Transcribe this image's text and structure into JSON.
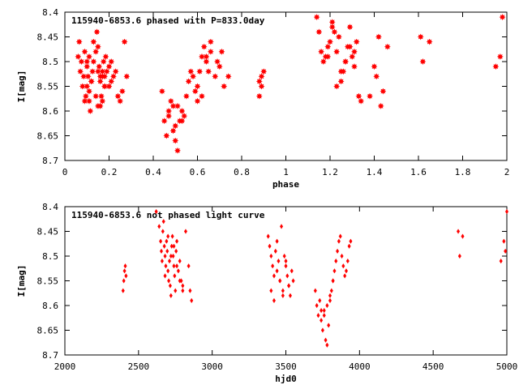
{
  "chart_data": [
    {
      "type": "scatter",
      "title": "115940-6853.6 phased with P=833.0day",
      "xlabel": "phase",
      "ylabel": "I[mag]",
      "xlim": [
        0,
        2
      ],
      "ylim": [
        8.4,
        8.7
      ],
      "y_inverted": true,
      "x_ticks": [
        0,
        0.2,
        0.4,
        0.6,
        0.8,
        1,
        1.2,
        1.4,
        1.6,
        1.8,
        2
      ],
      "x_tick_labels": [
        "0",
        "0.2",
        "0.4",
        "0.6",
        "0.8",
        "1",
        "1.2",
        "1.4",
        "1.6",
        "1.8",
        "2"
      ],
      "y_ticks": [
        8.4,
        8.45,
        8.5,
        8.55,
        8.6,
        8.65,
        8.7
      ],
      "y_tick_labels": [
        "8.4",
        "8.45",
        "8.5",
        "8.55",
        "8.6",
        "8.65",
        "8.7"
      ],
      "marker": "star",
      "marker_color": "#ff0000",
      "x": [
        0.06,
        0.065,
        0.07,
        0.075,
        0.08,
        0.085,
        0.09,
        0.095,
        0.1,
        0.1,
        0.105,
        0.11,
        0.11,
        0.115,
        0.12,
        0.125,
        0.13,
        0.13,
        0.14,
        0.145,
        0.15,
        0.15,
        0.155,
        0.16,
        0.16,
        0.165,
        0.17,
        0.17,
        0.175,
        0.18,
        0.18,
        0.185,
        0.19,
        0.2,
        0.2,
        0.21,
        0.21,
        0.22,
        0.23,
        0.24,
        0.25,
        0.26,
        0.27,
        0.28,
        0.09,
        0.1,
        0.11,
        0.12,
        0.17,
        0.18,
        0.14,
        0.15,
        0.16,
        0.44,
        0.45,
        0.46,
        0.47,
        0.48,
        0.49,
        0.5,
        0.5,
        0.51,
        0.52,
        0.53,
        0.54,
        0.55,
        0.56,
        0.57,
        0.58,
        0.59,
        0.6,
        0.61,
        0.62,
        0.63,
        0.64,
        0.65,
        0.66,
        0.68,
        0.7,
        0.72,
        0.74,
        0.47,
        0.49,
        0.51,
        0.53,
        0.6,
        0.62,
        0.64,
        0.66,
        0.69,
        0.71,
        0.88,
        0.89,
        0.9,
        0.88,
        0.89,
        1.14,
        1.15,
        1.16,
        1.17,
        1.18,
        1.19,
        1.2,
        1.21,
        1.22,
        1.23,
        1.24,
        1.25,
        1.26,
        1.27,
        1.28,
        1.29,
        1.3,
        1.31,
        1.32,
        1.33,
        1.34,
        1.19,
        1.21,
        1.23,
        1.25,
        1.27,
        1.29,
        1.31,
        1.38,
        1.4,
        1.41,
        1.42,
        1.43,
        1.44,
        1.46,
        1.61,
        1.62,
        1.65,
        1.95,
        1.97,
        1.98
      ],
      "y": [
        8.49,
        8.46,
        8.52,
        8.5,
        8.55,
        8.53,
        8.58,
        8.57,
        8.51,
        8.55,
        8.53,
        8.49,
        8.58,
        8.6,
        8.54,
        8.52,
        8.5,
        8.46,
        8.48,
        8.44,
        8.47,
        8.52,
        8.51,
        8.54,
        8.59,
        8.57,
        8.53,
        8.58,
        8.5,
        8.55,
        8.53,
        8.49,
        8.52,
        8.51,
        8.55,
        8.54,
        8.5,
        8.53,
        8.52,
        8.57,
        8.58,
        8.56,
        8.46,
        8.53,
        8.48,
        8.5,
        8.56,
        8.54,
        8.52,
        8.55,
        8.57,
        8.59,
        8.53,
        8.56,
        8.62,
        8.65,
        8.6,
        8.58,
        8.59,
        8.63,
        8.66,
        8.68,
        8.62,
        8.6,
        8.61,
        8.57,
        8.54,
        8.52,
        8.53,
        8.56,
        8.58,
        8.52,
        8.49,
        8.47,
        8.5,
        8.52,
        8.48,
        8.53,
        8.51,
        8.55,
        8.53,
        8.61,
        8.64,
        8.59,
        8.62,
        8.55,
        8.57,
        8.49,
        8.46,
        8.5,
        8.48,
        8.57,
        8.55,
        8.52,
        8.54,
        8.53,
        8.41,
        8.44,
        8.48,
        8.5,
        8.49,
        8.47,
        8.46,
        8.42,
        8.44,
        8.48,
        8.45,
        8.54,
        8.52,
        8.5,
        8.47,
        8.43,
        8.49,
        8.51,
        8.46,
        8.57,
        8.58,
        8.49,
        8.43,
        8.55,
        8.52,
        8.5,
        8.47,
        8.48,
        8.57,
        8.51,
        8.53,
        8.45,
        8.59,
        8.56,
        8.47,
        8.45,
        8.5,
        8.46,
        8.51,
        8.49,
        8.41
      ],
      "point_count_note": ""
    },
    {
      "type": "scatter",
      "title": "115940-6853.6 not phased light curve",
      "xlabel": "hjd0",
      "ylabel": "I[mag]",
      "xlim": [
        2000,
        5000
      ],
      "ylim": [
        8.4,
        8.7
      ],
      "y_inverted": true,
      "x_ticks": [
        2000,
        2500,
        3000,
        3500,
        4000,
        4500,
        5000
      ],
      "x_tick_labels": [
        "2000",
        "2500",
        "3000",
        "3500",
        "4000",
        "4500",
        "5000"
      ],
      "y_ticks": [
        8.4,
        8.45,
        8.5,
        8.55,
        8.6,
        8.65,
        8.7
      ],
      "y_tick_labels": [
        "8.4",
        "8.45",
        "8.5",
        "8.55",
        "8.6",
        "8.65",
        "8.7"
      ],
      "marker": "diamond",
      "marker_color": "#ff0000",
      "x": [
        2395,
        2400,
        2405,
        2410,
        2415,
        2620,
        2640,
        2650,
        2655,
        2660,
        2665,
        2670,
        2675,
        2680,
        2685,
        2690,
        2695,
        2700,
        2705,
        2710,
        2715,
        2720,
        2725,
        2730,
        2735,
        2740,
        2745,
        2750,
        2755,
        2760,
        2770,
        2780,
        2790,
        2800,
        2820,
        2840,
        2850,
        2860,
        2680,
        2700,
        2720,
        2740,
        2760,
        2780,
        2800,
        3380,
        3390,
        3400,
        3410,
        3420,
        3430,
        3440,
        3450,
        3460,
        3470,
        3480,
        3490,
        3500,
        3510,
        3520,
        3530,
        3540,
        3550,
        3400,
        3420,
        3440,
        3460,
        3480,
        3500,
        3520,
        3700,
        3710,
        3720,
        3730,
        3740,
        3750,
        3760,
        3770,
        3780,
        3790,
        3800,
        3810,
        3820,
        3830,
        3840,
        3850,
        3860,
        3870,
        3880,
        3890,
        3900,
        3910,
        3920,
        3930,
        3940,
        3740,
        3760,
        3780,
        3800,
        3820,
        4670,
        4680,
        4700,
        4960,
        4980,
        4990,
        5000
      ],
      "y": [
        8.57,
        8.55,
        8.53,
        8.52,
        8.54,
        8.41,
        8.44,
        8.47,
        8.49,
        8.51,
        8.45,
        8.43,
        8.48,
        8.5,
        8.52,
        8.47,
        8.49,
        8.53,
        8.55,
        8.51,
        8.56,
        8.58,
        8.48,
        8.46,
        8.5,
        8.52,
        8.54,
        8.57,
        8.49,
        8.47,
        8.53,
        8.51,
        8.55,
        8.56,
        8.45,
        8.52,
        8.57,
        8.59,
        8.54,
        8.46,
        8.5,
        8.48,
        8.52,
        8.55,
        8.57,
        8.46,
        8.48,
        8.5,
        8.52,
        8.54,
        8.49,
        8.53,
        8.51,
        8.55,
        8.44,
        8.57,
        8.5,
        8.52,
        8.54,
        8.56,
        8.58,
        8.53,
        8.55,
        8.57,
        8.59,
        8.47,
        8.55,
        8.58,
        8.51,
        8.56,
        8.57,
        8.6,
        8.62,
        8.59,
        8.63,
        8.65,
        8.61,
        8.67,
        8.68,
        8.64,
        8.59,
        8.57,
        8.55,
        8.53,
        8.51,
        8.49,
        8.47,
        8.46,
        8.5,
        8.52,
        8.54,
        8.53,
        8.51,
        8.48,
        8.47,
        8.61,
        8.62,
        8.6,
        8.58,
        8.55,
        8.45,
        8.5,
        8.46,
        8.51,
        8.47,
        8.49,
        8.41
      ]
    }
  ]
}
